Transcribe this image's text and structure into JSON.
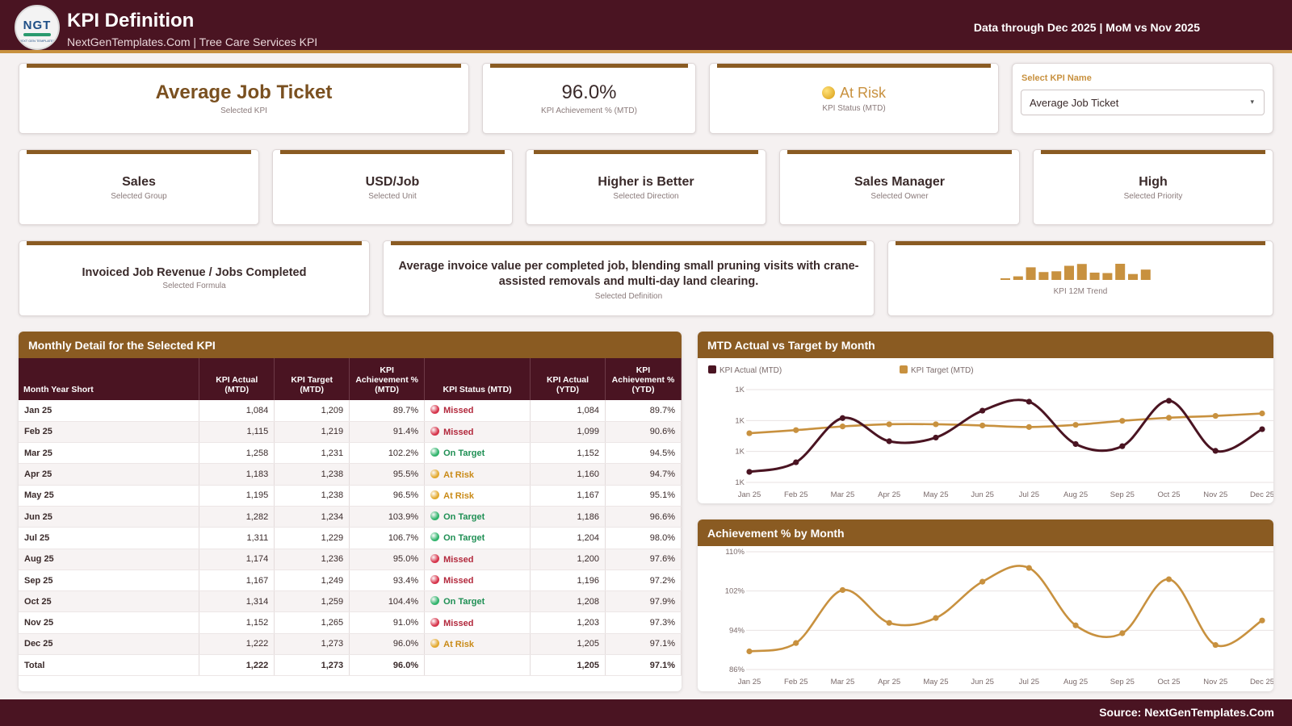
{
  "header": {
    "logo_text": "NGT",
    "logo_tagline": "NEXT GEN TEMPLATES",
    "title": "KPI Definition",
    "subtitle": "NextGenTemplates.Com | Tree Care Services KPI",
    "data_through": "Data through Dec 2025 | MoM vs Nov 2025"
  },
  "summary": {
    "kpi_name": "Average Job Ticket",
    "kpi_name_label": "Selected KPI",
    "achievement": "96.0%",
    "achievement_label": "KPI Achievement % (MTD)",
    "status": "At Risk",
    "status_label": "KPI Status (MTD)",
    "status_color": "#c8913f"
  },
  "selector": {
    "label": "Select KPI Name",
    "value": "Average Job Ticket",
    "arrow": "▾"
  },
  "attributes": [
    {
      "value": "Sales",
      "label": "Selected Group"
    },
    {
      "value": "USD/Job",
      "label": "Selected Unit"
    },
    {
      "value": "Higher is Better",
      "label": "Selected Direction"
    },
    {
      "value": "Sales Manager",
      "label": "Selected Owner"
    },
    {
      "value": "High",
      "label": "Selected Priority"
    }
  ],
  "formula": {
    "value": "Invoiced Job Revenue / Jobs Completed",
    "label": "Selected Formula"
  },
  "definition": {
    "value": "Average invoice value per completed job, blending small pruning visits with crane-assisted removals and multi-day land clearing.",
    "label": "Selected Definition"
  },
  "trend": {
    "label": "KPI 12M Trend",
    "values": [
      1084,
      1115,
      1258,
      1183,
      1195,
      1282,
      1311,
      1174,
      1167,
      1314,
      1152,
      1222
    ]
  },
  "table": {
    "title": "Monthly Detail for the Selected KPI",
    "headers": [
      "Month Year Short",
      "KPI Actual (MTD)",
      "KPI Target (MTD)",
      "KPI Achievement % (MTD)",
      "KPI Status (MTD)",
      "KPI Actual (YTD)",
      "KPI Achievement % (YTD)"
    ],
    "rows": [
      [
        "Jan 25",
        "1,084",
        "1,209",
        "89.7%",
        "Missed",
        "1,084",
        "89.7%"
      ],
      [
        "Feb 25",
        "1,115",
        "1,219",
        "91.4%",
        "Missed",
        "1,099",
        "90.6%"
      ],
      [
        "Mar 25",
        "1,258",
        "1,231",
        "102.2%",
        "On Target",
        "1,152",
        "94.5%"
      ],
      [
        "Apr 25",
        "1,183",
        "1,238",
        "95.5%",
        "At Risk",
        "1,160",
        "94.7%"
      ],
      [
        "May 25",
        "1,195",
        "1,238",
        "96.5%",
        "At Risk",
        "1,167",
        "95.1%"
      ],
      [
        "Jun 25",
        "1,282",
        "1,234",
        "103.9%",
        "On Target",
        "1,186",
        "96.6%"
      ],
      [
        "Jul 25",
        "1,311",
        "1,229",
        "106.7%",
        "On Target",
        "1,204",
        "98.0%"
      ],
      [
        "Aug 25",
        "1,174",
        "1,236",
        "95.0%",
        "Missed",
        "1,200",
        "97.6%"
      ],
      [
        "Sep 25",
        "1,167",
        "1,249",
        "93.4%",
        "Missed",
        "1,196",
        "97.2%"
      ],
      [
        "Oct 25",
        "1,314",
        "1,259",
        "104.4%",
        "On Target",
        "1,208",
        "97.9%"
      ],
      [
        "Nov 25",
        "1,152",
        "1,265",
        "91.0%",
        "Missed",
        "1,203",
        "97.3%"
      ],
      [
        "Dec 25",
        "1,222",
        "1,273",
        "96.0%",
        "At Risk",
        "1,205",
        "97.1%"
      ]
    ],
    "total": [
      "Total",
      "1,222",
      "1,273",
      "96.0%",
      "",
      "1,205",
      "97.1%"
    ],
    "status_colors": {
      "Missed": "#d6334a",
      "On Target": "#2fb36b",
      "At Risk": "#e3a92e"
    },
    "status_text_colors": {
      "Missed": "#b2283c",
      "On Target": "#1f8f54",
      "At Risk": "#c98a17"
    }
  },
  "chart_data": [
    {
      "type": "line",
      "title": "MTD Actual vs Target by Month",
      "categories": [
        "Jan 25",
        "Feb 25",
        "Mar 25",
        "Apr 25",
        "May 25",
        "Jun 25",
        "Jul 25",
        "Aug 25",
        "Sep 25",
        "Oct 25",
        "Nov 25",
        "Dec 25"
      ],
      "series": [
        {
          "name": "KPI Actual (MTD)",
          "color": "#4a1422",
          "values": [
            1084,
            1115,
            1258,
            1183,
            1195,
            1282,
            1311,
            1174,
            1167,
            1314,
            1152,
            1222
          ]
        },
        {
          "name": "KPI Target (MTD)",
          "color": "#c8913f",
          "values": [
            1209,
            1219,
            1231,
            1238,
            1238,
            1234,
            1229,
            1236,
            1249,
            1259,
            1265,
            1273
          ]
        }
      ],
      "ylim": [
        1050,
        1350
      ],
      "yticks": [
        1050,
        1150,
        1250,
        1350
      ],
      "ytick_labels": [
        "1K",
        "1K",
        "1K",
        "1K"
      ],
      "legend": "top-left",
      "grid": true
    },
    {
      "type": "line",
      "title": "Achievement % by Month",
      "categories": [
        "Jan 25",
        "Feb 25",
        "Mar 25",
        "Apr 25",
        "May 25",
        "Jun 25",
        "Jul 25",
        "Aug 25",
        "Sep 25",
        "Oct 25",
        "Nov 25",
        "Dec 25"
      ],
      "series": [
        {
          "color": "#c8913f",
          "values": [
            89.7,
            91.4,
            102.2,
            95.5,
            96.5,
            103.9,
            106.7,
            95.0,
            93.4,
            104.4,
            91.0,
            96.0
          ]
        }
      ],
      "ylim": [
        86,
        110
      ],
      "yticks": [
        86,
        94,
        102,
        110
      ],
      "ytick_labels": [
        "86%",
        "94%",
        "102%",
        "110%"
      ],
      "grid": true
    }
  ],
  "footer": {
    "source": "Source: NextGenTemplates.Com"
  }
}
